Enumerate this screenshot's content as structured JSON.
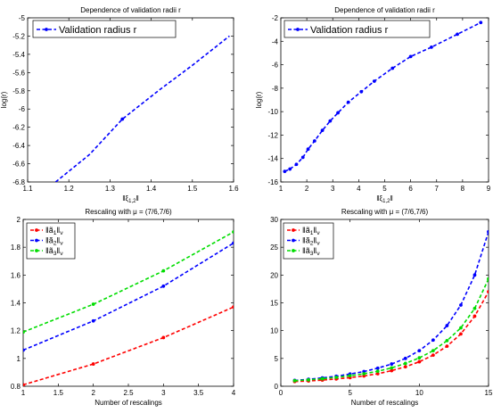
{
  "chart_data": [
    {
      "type": "line",
      "title": "Dependence of validation radii r",
      "xlabel": "‖ξ1,2‖",
      "ylabel": "log(r)",
      "xlim": [
        1.1,
        1.6
      ],
      "ylim": [
        -6.8,
        -5
      ],
      "xticks": [
        "1.1",
        "1.2",
        "1.3",
        "1.4",
        "1.5",
        "1.6"
      ],
      "yticks": [
        "-6.8",
        "-6.6",
        "-6.4",
        "-6.2",
        "-6",
        "-5.8",
        "-5.6",
        "-5.4",
        "-5.2",
        "-5"
      ],
      "legend_position": "top-left",
      "grid": false,
      "series": [
        {
          "name": "Validation radius r",
          "color": "#0000ff",
          "marker": false,
          "x": [
            1.168,
            1.25,
            1.33,
            1.42,
            1.5,
            1.59
          ],
          "y": [
            -6.8,
            -6.5,
            -6.11,
            -5.79,
            -5.52,
            -5.2
          ]
        }
      ],
      "markers": [
        {
          "x": 1.33,
          "y": -6.11
        }
      ]
    },
    {
      "type": "line",
      "title": "Dependence of validation radii r",
      "xlabel": "‖ξ1,2‖",
      "ylabel": "log(r)",
      "xlim": [
        1,
        9
      ],
      "ylim": [
        -16,
        -2
      ],
      "xticks": [
        "1",
        "2",
        "3",
        "4",
        "5",
        "6",
        "7",
        "8",
        "9"
      ],
      "yticks": [
        "-16",
        "-14",
        "-12",
        "-10",
        "-8",
        "-6",
        "-4",
        "-2"
      ],
      "legend_position": "top-left",
      "grid": false,
      "series": [
        {
          "name": "Validation radius r",
          "color": "#0000ff",
          "marker": true,
          "x": [
            1.15,
            1.35,
            1.6,
            1.85,
            2.05,
            2.3,
            2.6,
            2.9,
            3.2,
            3.6,
            4.1,
            4.6,
            5.3,
            6.0,
            6.8,
            7.8,
            8.7
          ],
          "y": [
            -15.1,
            -14.9,
            -14.5,
            -13.9,
            -13.2,
            -12.5,
            -11.6,
            -10.8,
            -10.1,
            -9.2,
            -8.3,
            -7.4,
            -6.3,
            -5.3,
            -4.5,
            -3.4,
            -2.4
          ]
        }
      ]
    },
    {
      "type": "line",
      "title": "Rescaling with μ = (7/6,7/6)",
      "xlabel": "Number of rescalings",
      "ylabel": "",
      "xlim": [
        1,
        4
      ],
      "ylim": [
        0.8,
        2
      ],
      "xticks": [
        "1",
        "1.5",
        "2",
        "2.5",
        "3",
        "3.5",
        "4"
      ],
      "yticks": [
        "0.8",
        "1",
        "1.2",
        "1.4",
        "1.6",
        "1.8",
        "2"
      ],
      "legend_position": "top-left",
      "grid": false,
      "series": [
        {
          "name": "‖ã1‖ν",
          "color": "#ff0000",
          "marker": true,
          "x": [
            1,
            2,
            3,
            4
          ],
          "y": [
            0.81,
            0.96,
            1.15,
            1.37
          ]
        },
        {
          "name": "‖ã2‖ν",
          "color": "#0000ff",
          "marker": true,
          "x": [
            1,
            2,
            3,
            4
          ],
          "y": [
            1.06,
            1.27,
            1.52,
            1.83
          ]
        },
        {
          "name": "‖ã3‖ν",
          "color": "#00dd00",
          "marker": true,
          "x": [
            1,
            2,
            3,
            4
          ],
          "y": [
            1.19,
            1.39,
            1.63,
            1.91
          ]
        }
      ]
    },
    {
      "type": "line",
      "title": "Rescaling with μ = (7/6,7/6)",
      "xlabel": "Number of rescalings",
      "ylabel": "",
      "xlim": [
        0,
        15
      ],
      "ylim": [
        0,
        30
      ],
      "xticks": [
        "0",
        "5",
        "10",
        "15"
      ],
      "yticks": [
        "0",
        "5",
        "10",
        "15",
        "20",
        "25",
        "30"
      ],
      "legend_position": "top-left",
      "grid": false,
      "series": [
        {
          "name": "‖ã1‖ν",
          "color": "#ff0000",
          "marker": true,
          "x": [
            1,
            2,
            3,
            4,
            5,
            6,
            7,
            8,
            9,
            10,
            11,
            12,
            13,
            14,
            15
          ],
          "y": [
            0.85,
            0.95,
            1.1,
            1.3,
            1.55,
            1.85,
            2.25,
            2.8,
            3.5,
            4.4,
            5.6,
            7.2,
            9.4,
            12.6,
            17.0
          ]
        },
        {
          "name": "‖ã2‖ν",
          "color": "#0000ff",
          "marker": true,
          "x": [
            1,
            2,
            3,
            4,
            5,
            6,
            7,
            8,
            9,
            10,
            11,
            12,
            13,
            14,
            15
          ],
          "y": [
            1.05,
            1.25,
            1.5,
            1.8,
            2.2,
            2.65,
            3.25,
            4.0,
            5.0,
            6.4,
            8.3,
            10.9,
            14.6,
            20.0,
            27.8
          ]
        },
        {
          "name": "‖ã3‖ν",
          "color": "#00dd00",
          "marker": true,
          "x": [
            1,
            2,
            3,
            4,
            5,
            6,
            7,
            8,
            9,
            10,
            11,
            12,
            13,
            14,
            15
          ],
          "y": [
            1.0,
            1.15,
            1.35,
            1.6,
            1.9,
            2.25,
            2.7,
            3.3,
            4.1,
            5.1,
            6.4,
            8.2,
            10.5,
            14.0,
            19.3
          ]
        }
      ]
    }
  ]
}
